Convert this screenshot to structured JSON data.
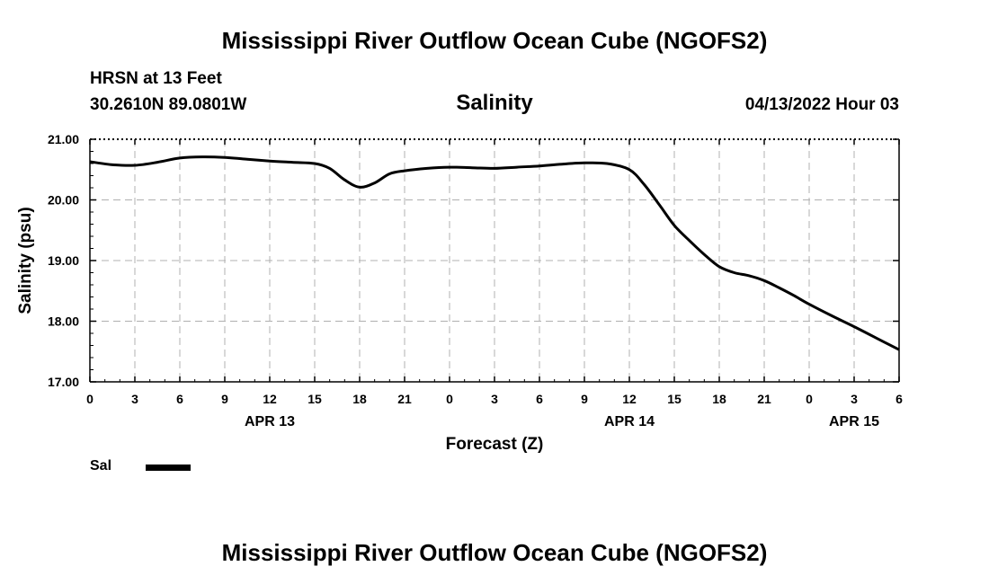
{
  "header": {
    "main_title": "Mississippi River Outflow Ocean Cube (NGOFS2)",
    "station": "HRSN at 13 Feet",
    "coords": "30.2610N  89.0801W",
    "variable": "Salinity",
    "datetime": "04/13/2022 Hour 03"
  },
  "footer": {
    "main_title": "Mississippi River Outflow Ocean Cube (NGOFS2)"
  },
  "legend": {
    "label": "Sal",
    "color": "#000000"
  },
  "chart_data": {
    "type": "line",
    "title": "Salinity",
    "xlabel": "Forecast (Z)",
    "ylabel": "Salinity (psu)",
    "xlim": [
      0,
      54
    ],
    "ylim": [
      17.0,
      21.0
    ],
    "yticks": [
      "17.00",
      "18.00",
      "19.00",
      "20.00",
      "21.00"
    ],
    "ytick_values": [
      17,
      18,
      19,
      20,
      21
    ],
    "xtick_hours": [
      0,
      3,
      6,
      9,
      12,
      15,
      18,
      21,
      24,
      27,
      30,
      33,
      36,
      39,
      42,
      45,
      48,
      51,
      54
    ],
    "xtick_labels": [
      "0",
      "3",
      "6",
      "9",
      "12",
      "15",
      "18",
      "21",
      "0",
      "3",
      "6",
      "9",
      "12",
      "15",
      "18",
      "21",
      "0",
      "3",
      "6"
    ],
    "date_labels": [
      {
        "hour": 12,
        "label": "APR 13"
      },
      {
        "hour": 36,
        "label": "APR 14"
      },
      {
        "hour": 51,
        "label": "APR 15"
      }
    ],
    "grid": true,
    "series": [
      {
        "name": "Sal",
        "x": [
          0,
          1.5,
          3,
          4.5,
          6,
          7.5,
          9,
          10.5,
          12,
          13.5,
          15,
          16,
          17,
          18,
          19,
          20,
          21,
          22.5,
          24,
          25.5,
          27,
          28.5,
          30,
          31.5,
          33,
          34.5,
          36,
          37,
          38,
          39,
          40,
          41,
          42,
          43,
          44,
          45,
          46,
          47,
          48,
          49.5,
          51,
          52.5,
          54
        ],
        "y": [
          20.63,
          20.58,
          20.57,
          20.62,
          20.69,
          20.71,
          20.7,
          20.67,
          20.64,
          20.62,
          20.6,
          20.52,
          20.33,
          20.21,
          20.28,
          20.43,
          20.48,
          20.52,
          20.54,
          20.53,
          20.52,
          20.54,
          20.56,
          20.59,
          20.61,
          20.6,
          20.5,
          20.25,
          19.92,
          19.58,
          19.33,
          19.1,
          18.9,
          18.8,
          18.75,
          18.67,
          18.55,
          18.42,
          18.28,
          18.09,
          17.91,
          17.72,
          17.53
        ]
      }
    ]
  }
}
